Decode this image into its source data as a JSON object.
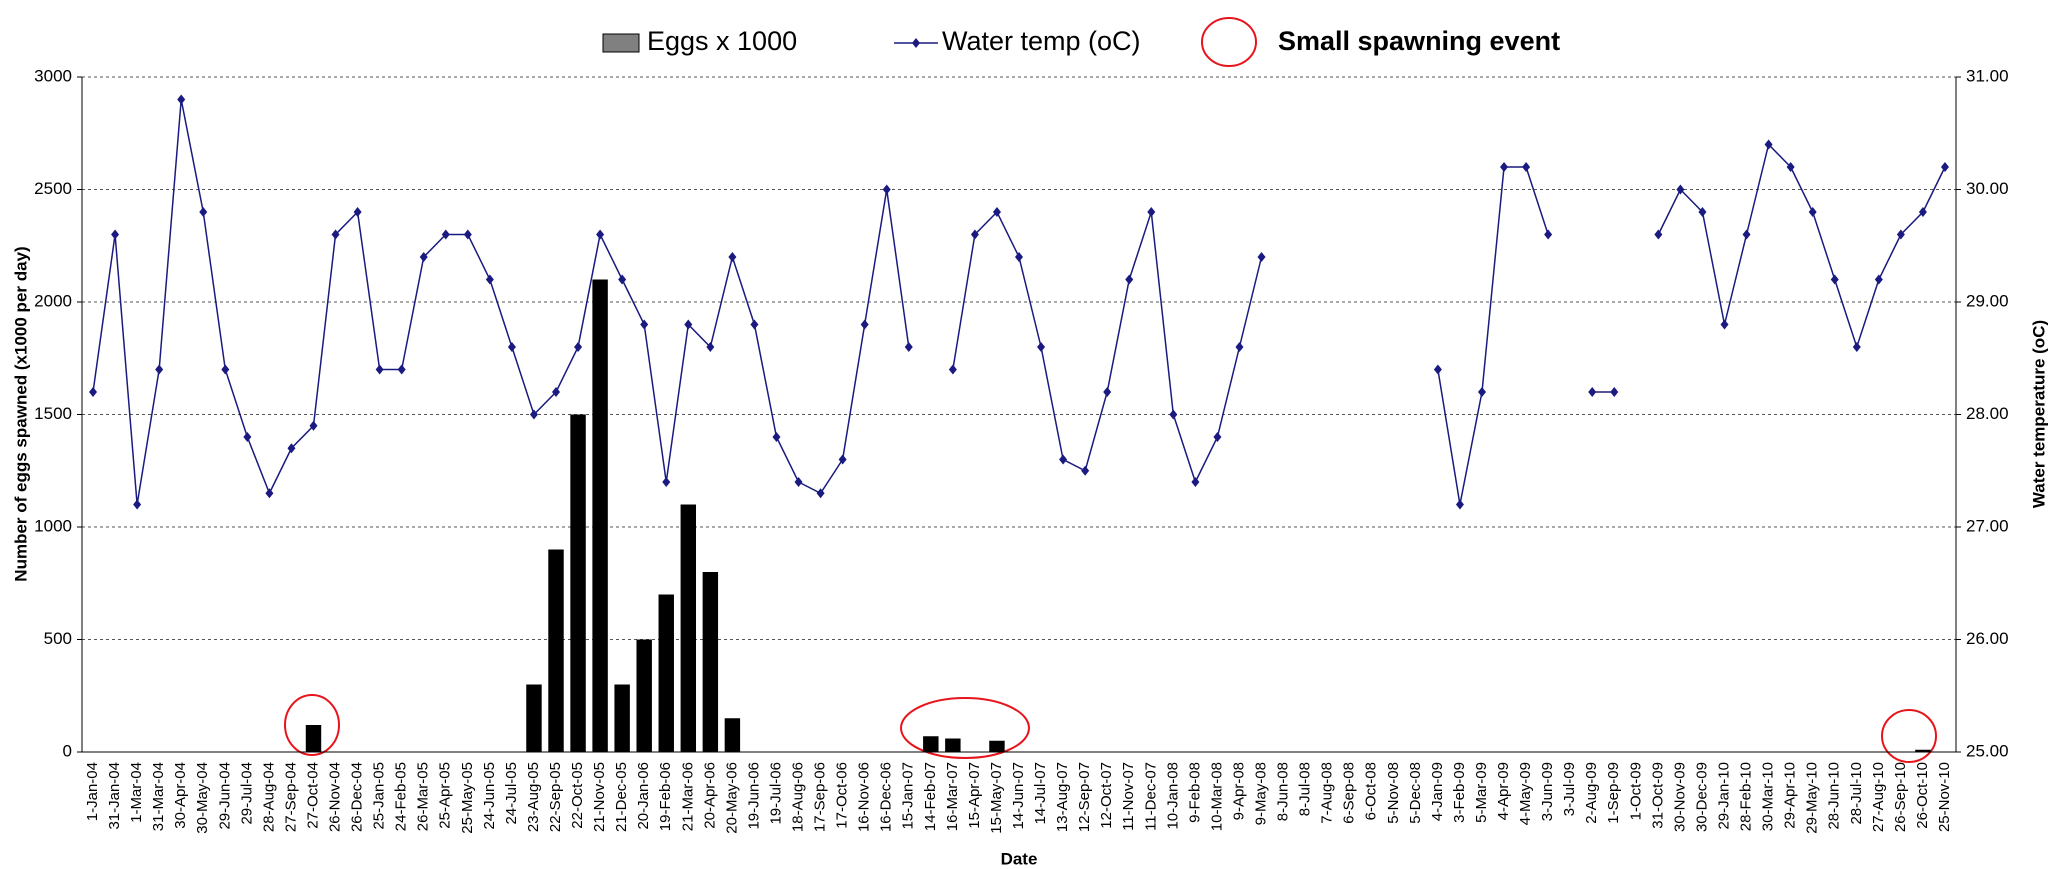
{
  "chart_data": {
    "type": "bar-line",
    "x_label": "Date",
    "y_label": "Number of eggs spawned (x1000 per day)",
    "y2_label": "Water temperature (oC)",
    "annotation": "Small spawning event",
    "categories": [
      "1-Jan-04",
      "31-Jan-04",
      "1-Mar-04",
      "31-Mar-04",
      "30-Apr-04",
      "30-May-04",
      "29-Jun-04",
      "29-Jul-04",
      "28-Aug-04",
      "27-Sep-04",
      "27-Oct-04",
      "26-Nov-04",
      "26-Dec-04",
      "25-Jan-05",
      "24-Feb-05",
      "26-Mar-05",
      "25-Apr-05",
      "25-May-05",
      "24-Jun-05",
      "24-Jul-05",
      "23-Aug-05",
      "22-Sep-05",
      "22-Oct-05",
      "21-Nov-05",
      "21-Dec-05",
      "20-Jan-06",
      "19-Feb-06",
      "21-Mar-06",
      "20-Apr-06",
      "20-May-06",
      "19-Jun-06",
      "19-Jul-06",
      "18-Aug-06",
      "17-Sep-06",
      "17-Oct-06",
      "16-Nov-06",
      "16-Dec-06",
      "15-Jan-07",
      "14-Feb-07",
      "16-Mar-07",
      "15-Apr-07",
      "15-May-07",
      "14-Jun-07",
      "14-Jul-07",
      "13-Aug-07",
      "12-Sep-07",
      "12-Oct-07",
      "11-Nov-07",
      "11-Dec-07",
      "10-Jan-08",
      "9-Feb-08",
      "10-Mar-08",
      "9-Apr-08",
      "9-May-08",
      "8-Jun-08",
      "8-Jul-08",
      "7-Aug-08",
      "6-Sep-08",
      "6-Oct-08",
      "5-Nov-08",
      "5-Dec-08",
      "4-Jan-09",
      "3-Feb-09",
      "5-Mar-09",
      "4-Apr-09",
      "4-May-09",
      "3-Jun-09",
      "3-Jul-09",
      "2-Aug-09",
      "1-Sep-09",
      "1-Oct-09",
      "31-Oct-09",
      "30-Nov-09",
      "30-Dec-09",
      "29-Jan-10",
      "28-Feb-10",
      "30-Mar-10",
      "29-Apr-10",
      "29-May-10",
      "28-Jun-10",
      "28-Jul-10",
      "27-Aug-10",
      "26-Sep-10",
      "26-Oct-10",
      "25-Nov-10"
    ],
    "series": [
      {
        "name": "Eggs x 1000",
        "type": "bar",
        "color": "#000000",
        "values": [
          0,
          0,
          0,
          0,
          0,
          0,
          0,
          0,
          0,
          0,
          120,
          0,
          0,
          0,
          0,
          0,
          0,
          0,
          0,
          0,
          300,
          900,
          1500,
          2100,
          300,
          500,
          700,
          1100,
          800,
          150,
          0,
          0,
          0,
          0,
          0,
          0,
          0,
          0,
          70,
          60,
          0,
          50,
          0,
          0,
          0,
          0,
          0,
          0,
          0,
          0,
          0,
          0,
          0,
          0,
          0,
          0,
          0,
          0,
          0,
          0,
          0,
          0,
          0,
          0,
          0,
          0,
          0,
          0,
          0,
          0,
          0,
          0,
          0,
          0,
          0,
          0,
          0,
          0,
          0,
          0,
          0,
          0,
          0,
          10,
          0
        ]
      },
      {
        "name": "Water temp (oC)",
        "type": "line",
        "axis": "y2",
        "color": "#1a1a80",
        "values": [
          28.2,
          29.6,
          27.2,
          28.4,
          30.8,
          29.8,
          28.4,
          27.8,
          27.3,
          27.7,
          27.9,
          29.6,
          29.8,
          28.4,
          28.4,
          29.4,
          29.6,
          29.6,
          29.2,
          28.6,
          28.0,
          28.2,
          28.6,
          29.6,
          29.2,
          28.8,
          27.4,
          28.8,
          28.6,
          29.4,
          28.8,
          27.8,
          27.4,
          27.3,
          27.6,
          28.8,
          30.0,
          28.6,
          null,
          28.4,
          29.6,
          29.8,
          29.4,
          28.6,
          27.6,
          27.5,
          28.2,
          29.2,
          29.8,
          28.0,
          27.4,
          27.8,
          28.6,
          29.4,
          null,
          null,
          null,
          null,
          null,
          null,
          null,
          28.4,
          27.2,
          28.2,
          30.2,
          30.2,
          29.6,
          null,
          28.2,
          28.2,
          null,
          29.6,
          30.0,
          29.8,
          28.8,
          29.6,
          30.4,
          30.2,
          29.8,
          29.2,
          28.6,
          29.2,
          29.6,
          29.8,
          30.2
        ]
      }
    ],
    "ylim": [
      0,
      3000
    ],
    "yticks": [
      0,
      500,
      1000,
      1500,
      2000,
      2500,
      3000
    ],
    "y2lim": [
      25,
      31
    ],
    "y2ticks": [
      {
        "value": 25,
        "label": "25.00"
      },
      {
        "value": 26,
        "label": "26.00"
      },
      {
        "value": 27,
        "label": "27.00"
      },
      {
        "value": 28,
        "label": "28.00"
      },
      {
        "value": 29,
        "label": "29.00"
      },
      {
        "value": 30,
        "label": "30.00"
      },
      {
        "value": 31,
        "label": "31.00"
      }
    ],
    "grid": true,
    "legend": "top"
  }
}
